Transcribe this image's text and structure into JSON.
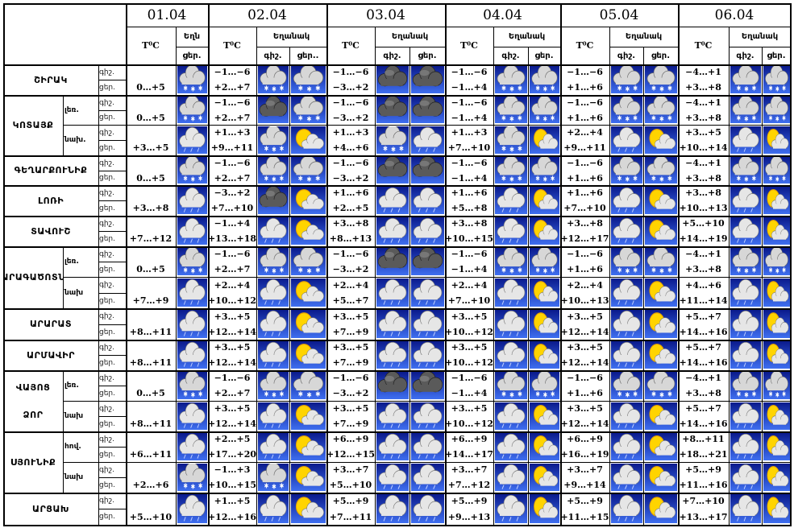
{
  "header": {
    "dates": [
      "01.04",
      "02.04",
      "03.04",
      "04.04",
      "05.04",
      "06.04"
    ],
    "temp_label": "T⁰C",
    "weather_label": "Եղանակ",
    "weather_label_cut": "Եղն",
    "night_label": "գիշ.",
    "day_label": "ցեր.",
    "day_label_cut": "ցեր.."
  },
  "rows": [
    {
      "region": "ՇԻՐԱԿ",
      "sub": "",
      "temps": [
        [
          "",
          "0…+5"
        ],
        [
          "−1…−6",
          "+2…+7"
        ],
        [
          "−1…−6",
          "−3…+2"
        ],
        [
          "−1…−6",
          "−1…+4"
        ],
        [
          "−1…−6",
          "+1…+6"
        ],
        [
          "−4…+1",
          "+3…+8"
        ]
      ],
      "icons": [
        [
          "",
          "cloud-snow-icon"
        ],
        [
          "cloud-snow-icon",
          "cloud-snow-icon"
        ],
        [
          "dark-cloud-icon",
          "dark-cloud-icon"
        ],
        [
          "cloud-snow-icon",
          "cloud-snow-icon"
        ],
        [
          "cloud-snow-icon",
          "cloud-snow-icon"
        ],
        [
          "cloud-snow-icon",
          "cloud-snow-icon"
        ]
      ]
    },
    {
      "region": "ԿՈՏԱՅՔ",
      "sub": "լեռ.",
      "temps": [
        [
          "",
          "0…+5"
        ],
        [
          "−1…−6",
          "+2…+7"
        ],
        [
          "−1…−6",
          "−3…+2"
        ],
        [
          "−1…−6",
          "−1…+4"
        ],
        [
          "−1…−6",
          "+1…+6"
        ],
        [
          "−4…+1",
          "+3…+8"
        ]
      ],
      "icons": [
        [
          "",
          "cloud-snow-icon"
        ],
        [
          "dark-cloud-icon",
          "cloud-snow-icon"
        ],
        [
          "dark-cloud-icon",
          "dark-cloud-icon"
        ],
        [
          "cloud-snow-icon",
          "cloud-snow-icon"
        ],
        [
          "cloud-snow-icon",
          "cloud-snow-icon"
        ],
        [
          "cloud-snow-icon",
          "cloud-snow-icon"
        ]
      ]
    },
    {
      "region": "",
      "sub": "նախ.",
      "temps": [
        [
          "",
          "+3…+5"
        ],
        [
          "+1…+3",
          "+9…+11"
        ],
        [
          "+1…+3",
          "+4…+6"
        ],
        [
          "+1…+3",
          "+7…+10"
        ],
        [
          "+2…+4",
          "+9…+11"
        ],
        [
          "+3…+5",
          "+10…+14"
        ]
      ],
      "icons": [
        [
          "",
          "cloud-rain-icon"
        ],
        [
          "cloud-snow-icon",
          "sun-cloud-icon"
        ],
        [
          "cloud-snow-icon",
          "cloud-rain-icon"
        ],
        [
          "cloud-snow-icon",
          "sun-cloud-icon"
        ],
        [
          "cloud-rain-icon",
          "sun-cloud-icon"
        ],
        [
          "cloud-rain-icon",
          "sun-cloud-icon"
        ]
      ]
    },
    {
      "region": "ԳԵՂԱՐՔՈՒՆԻՔ",
      "sub": "",
      "temps": [
        [
          "",
          "0…+5"
        ],
        [
          "−1…−6",
          "+2…+7"
        ],
        [
          "−1…−6",
          "−3…+2"
        ],
        [
          "−1…−6",
          "−1…+4"
        ],
        [
          "−1…−6",
          "+1…+6"
        ],
        [
          "−4…+1",
          "+3…+8"
        ]
      ],
      "icons": [
        [
          "",
          "cloud-snow-icon"
        ],
        [
          "cloud-snow-icon",
          "cloud-snow-icon"
        ],
        [
          "dark-cloud-icon",
          "dark-cloud-icon"
        ],
        [
          "cloud-snow-icon",
          "cloud-snow-icon"
        ],
        [
          "cloud-snow-icon",
          "cloud-snow-icon"
        ],
        [
          "cloud-snow-icon",
          "cloud-snow-icon"
        ]
      ]
    },
    {
      "region": "ԼՈՌԻ",
      "sub": "",
      "temps": [
        [
          "",
          "+3…+8"
        ],
        [
          "−3…+2",
          "+7…+10"
        ],
        [
          "+1…+6",
          "+2…+5"
        ],
        [
          "+1…+6",
          "+5…+8"
        ],
        [
          "+1…+6",
          "+7…+10"
        ],
        [
          "+3…+8",
          "+10…+13"
        ]
      ],
      "icons": [
        [
          "",
          "cloud-rain-icon"
        ],
        [
          "dark-cloud-icon",
          "sun-cloud-icon"
        ],
        [
          "cloud-rain-icon",
          "cloud-rain-icon"
        ],
        [
          "cloud-rain-icon",
          "sun-cloud-icon"
        ],
        [
          "cloud-rain-icon",
          "sun-cloud-icon"
        ],
        [
          "cloud-rain-icon",
          "sun-cloud-icon"
        ]
      ]
    },
    {
      "region": "ՏԱՎՈՒՇ",
      "sub": "",
      "temps": [
        [
          "",
          "+7…+12"
        ],
        [
          "−1…+4",
          "+13…+18"
        ],
        [
          "+3…+8",
          "+8…+13"
        ],
        [
          "+3…+8",
          "+10…+15"
        ],
        [
          "+3…+8",
          "+12…+17"
        ],
        [
          "+5…+10",
          "+14…+19"
        ]
      ],
      "icons": [
        [
          "",
          "cloud-rain-icon"
        ],
        [
          "cloud-rain-icon",
          "sun-cloud-icon"
        ],
        [
          "cloud-rain-icon",
          "cloud-rain-icon"
        ],
        [
          "cloud-rain-icon",
          "sun-cloud-icon"
        ],
        [
          "cloud-rain-icon",
          "sun-cloud-icon"
        ],
        [
          "cloud-rain-icon",
          "sun-cloud-icon"
        ]
      ]
    },
    {
      "region": "ԱՐԱԳԱԾՈՏՆ",
      "sub": "լեռ.",
      "temps": [
        [
          "",
          "0…+5"
        ],
        [
          "−1…−6",
          "+2…+7"
        ],
        [
          "−1…−6",
          "−3…+2"
        ],
        [
          "−1…−6",
          "−1…+4"
        ],
        [
          "−1…−6",
          "+1…+6"
        ],
        [
          "−4…+1",
          "+3…+8"
        ]
      ],
      "icons": [
        [
          "",
          "cloud-snow-icon"
        ],
        [
          "cloud-snow-icon",
          "cloud-snow-icon"
        ],
        [
          "dark-cloud-icon",
          "dark-cloud-icon"
        ],
        [
          "cloud-snow-icon",
          "cloud-snow-icon"
        ],
        [
          "cloud-snow-icon",
          "cloud-snow-icon"
        ],
        [
          "cloud-snow-icon",
          "cloud-snow-icon"
        ]
      ]
    },
    {
      "region": "",
      "sub": "նախ",
      "temps": [
        [
          "",
          "+7…+9"
        ],
        [
          "+2…+4",
          "+10…+12"
        ],
        [
          "+2…+4",
          "+5…+7"
        ],
        [
          "+2…+4",
          "+7…+10"
        ],
        [
          "+2…+4",
          "+10…+13"
        ],
        [
          "+4…+6",
          "+11…+14"
        ]
      ],
      "icons": [
        [
          "",
          "cloud-rain-icon"
        ],
        [
          "cloud-rain-icon",
          "sun-cloud-icon"
        ],
        [
          "cloud-rain-icon",
          "cloud-rain-icon"
        ],
        [
          "cloud-rain-icon",
          "sun-cloud-icon"
        ],
        [
          "cloud-rain-icon",
          "sun-cloud-icon"
        ],
        [
          "cloud-rain-icon",
          "sun-cloud-icon"
        ]
      ]
    },
    {
      "region": "ԱՐԱՐԱՏ",
      "sub": "",
      "temps": [
        [
          "",
          "+8…+11"
        ],
        [
          "+3…+5",
          "+12…+14"
        ],
        [
          "+3…+5",
          "+7…+9"
        ],
        [
          "+3…+5",
          "+10…+12"
        ],
        [
          "+3…+5",
          "+12…+14"
        ],
        [
          "+5…+7",
          "+14…+16"
        ]
      ],
      "icons": [
        [
          "",
          "cloud-rain-icon"
        ],
        [
          "cloud-rain-icon",
          "sun-cloud-icon"
        ],
        [
          "cloud-rain-icon",
          "cloud-rain-icon"
        ],
        [
          "cloud-rain-icon",
          "sun-cloud-icon"
        ],
        [
          "cloud-rain-icon",
          "sun-cloud-icon"
        ],
        [
          "cloud-rain-icon",
          "sun-cloud-icon"
        ]
      ]
    },
    {
      "region": "ԱՐՄԱՎԻՐ",
      "sub": "",
      "temps": [
        [
          "",
          "+8…+11"
        ],
        [
          "+3…+5",
          "+12…+14"
        ],
        [
          "+3…+5",
          "+7…+9"
        ],
        [
          "+3…+5",
          "+10…+12"
        ],
        [
          "+3…+5",
          "+12…+14"
        ],
        [
          "+5…+7",
          "+14…+16"
        ]
      ],
      "icons": [
        [
          "",
          "cloud-rain-icon"
        ],
        [
          "cloud-rain-icon",
          "sun-cloud-icon"
        ],
        [
          "cloud-rain-icon",
          "cloud-rain-icon"
        ],
        [
          "cloud-rain-icon",
          "sun-cloud-icon"
        ],
        [
          "cloud-rain-icon",
          "sun-cloud-icon"
        ],
        [
          "cloud-rain-icon",
          "sun-cloud-icon"
        ]
      ]
    },
    {
      "region": "ՎԱՅՈՑ",
      "region2": "ՁՈՐ",
      "sub": "լեռ.",
      "temps": [
        [
          "",
          "0…+5"
        ],
        [
          "−1…−6",
          "+2…+7"
        ],
        [
          "−1…−6",
          "−3…+2"
        ],
        [
          "−1…−6",
          "−1…+4"
        ],
        [
          "−1…−6",
          "+1…+6"
        ],
        [
          "−4…+1",
          "+3…+8"
        ]
      ],
      "icons": [
        [
          "",
          "cloud-snow-icon"
        ],
        [
          "cloud-snow-icon",
          "cloud-snow-icon"
        ],
        [
          "dark-cloud-icon",
          "dark-cloud-icon"
        ],
        [
          "cloud-snow-icon",
          "cloud-snow-icon"
        ],
        [
          "cloud-snow-icon",
          "cloud-snow-icon"
        ],
        [
          "cloud-snow-icon",
          "cloud-snow-icon"
        ]
      ]
    },
    {
      "region": "",
      "sub": "նախ",
      "temps": [
        [
          "",
          "+8…+11"
        ],
        [
          "+3…+5",
          "+12…+14"
        ],
        [
          "+3…+5",
          "+7…+9"
        ],
        [
          "+3…+5",
          "+10…+12"
        ],
        [
          "+3…+5",
          "+12…+14"
        ],
        [
          "+5…+7",
          "+14…+16"
        ]
      ],
      "icons": [
        [
          "",
          "cloud-rain-icon"
        ],
        [
          "cloud-rain-icon",
          "sun-cloud-icon"
        ],
        [
          "cloud-rain-icon",
          "cloud-rain-icon"
        ],
        [
          "cloud-rain-icon",
          "sun-cloud-icon"
        ],
        [
          "cloud-rain-icon",
          "sun-cloud-icon"
        ],
        [
          "cloud-rain-icon",
          "sun-cloud-icon"
        ]
      ]
    },
    {
      "region": "ՍՅՈՒՆԻՔ",
      "sub": "հով.",
      "temps": [
        [
          "",
          "+6…+11"
        ],
        [
          "+2…+5",
          "+17…+20"
        ],
        [
          "+6…+9",
          "+12…+15"
        ],
        [
          "+6…+9",
          "+14…+17"
        ],
        [
          "+6…+9",
          "+16…+19"
        ],
        [
          "+8…+11",
          "+18…+21"
        ]
      ],
      "icons": [
        [
          "",
          "cloud-rain-icon"
        ],
        [
          "cloud-rain-icon",
          "sun-cloud-icon"
        ],
        [
          "cloud-rain-icon",
          "cloud-rain-icon"
        ],
        [
          "cloud-rain-icon",
          "sun-cloud-icon"
        ],
        [
          "cloud-rain-icon",
          "sun-cloud-icon"
        ],
        [
          "cloud-rain-icon",
          "sun-cloud-icon"
        ]
      ]
    },
    {
      "region": "",
      "sub": "նախ",
      "temps": [
        [
          "",
          "+2…+6"
        ],
        [
          "−1…+3",
          "+10…+15"
        ],
        [
          "+3…+7",
          "+5…+10"
        ],
        [
          "+3…+7",
          "+7…+12"
        ],
        [
          "+3…+7",
          "+9…+14"
        ],
        [
          "+5…+9",
          "+11…+16"
        ]
      ],
      "icons": [
        [
          "",
          "cloud-snow-icon"
        ],
        [
          "cloud-snow-icon",
          "sun-cloud-icon"
        ],
        [
          "cloud-rain-icon",
          "cloud-rain-icon"
        ],
        [
          "cloud-rain-icon",
          "sun-cloud-icon"
        ],
        [
          "cloud-rain-icon",
          "sun-cloud-icon"
        ],
        [
          "cloud-rain-icon",
          "sun-cloud-icon"
        ]
      ]
    },
    {
      "region": "ԱՐՑԱԽ",
      "sub": "",
      "temps": [
        [
          "",
          "+5…+10"
        ],
        [
          "+1…+5",
          "+12…+16"
        ],
        [
          "+5…+9",
          "+7…+11"
        ],
        [
          "+5…+9",
          "+9…+13"
        ],
        [
          "+5…+9",
          "+11…+15"
        ],
        [
          "+7…+10",
          "+13…+17"
        ]
      ],
      "icons": [
        [
          "",
          "cloud-rain-icon"
        ],
        [
          "cloud-rain-icon",
          "sun-cloud-icon"
        ],
        [
          "cloud-rain-icon",
          "cloud-rain-icon"
        ],
        [
          "cloud-rain-icon",
          "sun-cloud-icon"
        ],
        [
          "cloud-rain-icon",
          "sun-cloud-icon"
        ],
        [
          "cloud-rain-icon",
          "sun-cloud-icon"
        ]
      ]
    }
  ]
}
